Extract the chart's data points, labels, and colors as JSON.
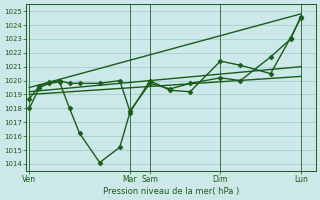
{
  "background_color": "#cce8e8",
  "grid_color": "#99cccc",
  "line_color": "#1a5c1a",
  "text_color": "#1a5c1a",
  "ylabel_values": [
    1014,
    1015,
    1016,
    1017,
    1018,
    1019,
    1020,
    1021,
    1022,
    1023,
    1024,
    1025
  ],
  "ylim": [
    1013.5,
    1025.5
  ],
  "xlabel": "Pression niveau de la mer( hPa )",
  "xtick_labels": [
    "Ven",
    "Mar",
    "Sam",
    "Dim",
    "Lun"
  ],
  "xtick_positions": [
    0,
    10,
    12,
    19,
    27
  ],
  "xlim": [
    -0.3,
    28.5
  ],
  "series": [
    {
      "x": [
        0,
        1,
        2,
        3,
        4,
        5,
        7,
        9,
        10,
        12,
        14,
        16,
        19,
        21,
        24,
        26,
        27
      ],
      "y": [
        1018.0,
        1019.5,
        1019.8,
        1019.9,
        1018.0,
        1016.2,
        1014.1,
        1015.2,
        1017.7,
        1020.0,
        1019.3,
        1019.2,
        1021.4,
        1021.1,
        1020.5,
        1023.1,
        1024.5
      ],
      "marker": "D",
      "markersize": 2.5,
      "linewidth": 1.0
    },
    {
      "x": [
        0,
        27
      ],
      "y": [
        1019.5,
        1024.8
      ],
      "marker": null,
      "markersize": 0,
      "linewidth": 1.0
    },
    {
      "x": [
        0,
        27
      ],
      "y": [
        1019.2,
        1021.0
      ],
      "marker": null,
      "markersize": 0,
      "linewidth": 1.0
    },
    {
      "x": [
        0,
        27
      ],
      "y": [
        1019.0,
        1020.3
      ],
      "marker": null,
      "markersize": 0,
      "linewidth": 1.0
    },
    {
      "x": [
        0,
        1,
        2,
        3,
        4,
        5,
        7,
        9,
        10,
        12,
        14,
        16,
        19,
        21,
        24,
        26,
        27
      ],
      "y": [
        1018.7,
        1019.6,
        1019.9,
        1020.0,
        1019.8,
        1019.8,
        1019.8,
        1020.0,
        1017.8,
        1019.8,
        1019.4,
        1019.8,
        1020.2,
        1020.0,
        1021.7,
        1023.0,
        1024.6
      ],
      "marker": "D",
      "markersize": 2.5,
      "linewidth": 1.0
    }
  ],
  "vline_positions": [
    0,
    10,
    12,
    19,
    27
  ],
  "figsize": [
    3.2,
    2.0
  ],
  "dpi": 100
}
